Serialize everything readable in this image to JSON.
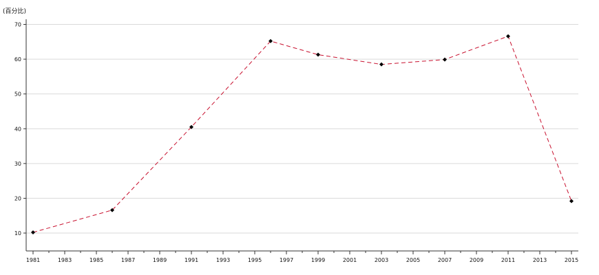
{
  "chart_data": {
    "type": "line",
    "title": "",
    "ylabel": "(百分比)",
    "xlabel": "",
    "x_ticks": [
      1981,
      1983,
      1985,
      1987,
      1989,
      1991,
      1993,
      1995,
      1997,
      1999,
      2001,
      2003,
      2005,
      2007,
      2009,
      2011,
      2013,
      2015
    ],
    "y_ticks": [
      10,
      20,
      30,
      40,
      50,
      60,
      70
    ],
    "xlim": [
      1981,
      2015
    ],
    "ylim": [
      5,
      72
    ],
    "grid": "horizontal",
    "legend": "none",
    "series": [
      {
        "color": "#c8102e",
        "marker_color": "#000000",
        "points": [
          {
            "x": 1981,
            "y": 10.2
          },
          {
            "x": 1986,
            "y": 16.6
          },
          {
            "x": 1991,
            "y": 40.5
          },
          {
            "x": 1996,
            "y": 65.2
          },
          {
            "x": 1999,
            "y": 61.3
          },
          {
            "x": 2003,
            "y": 58.5
          },
          {
            "x": 2007,
            "y": 59.9
          },
          {
            "x": 2011,
            "y": 66.6
          },
          {
            "x": 2015,
            "y": 19.2
          }
        ]
      }
    ]
  }
}
